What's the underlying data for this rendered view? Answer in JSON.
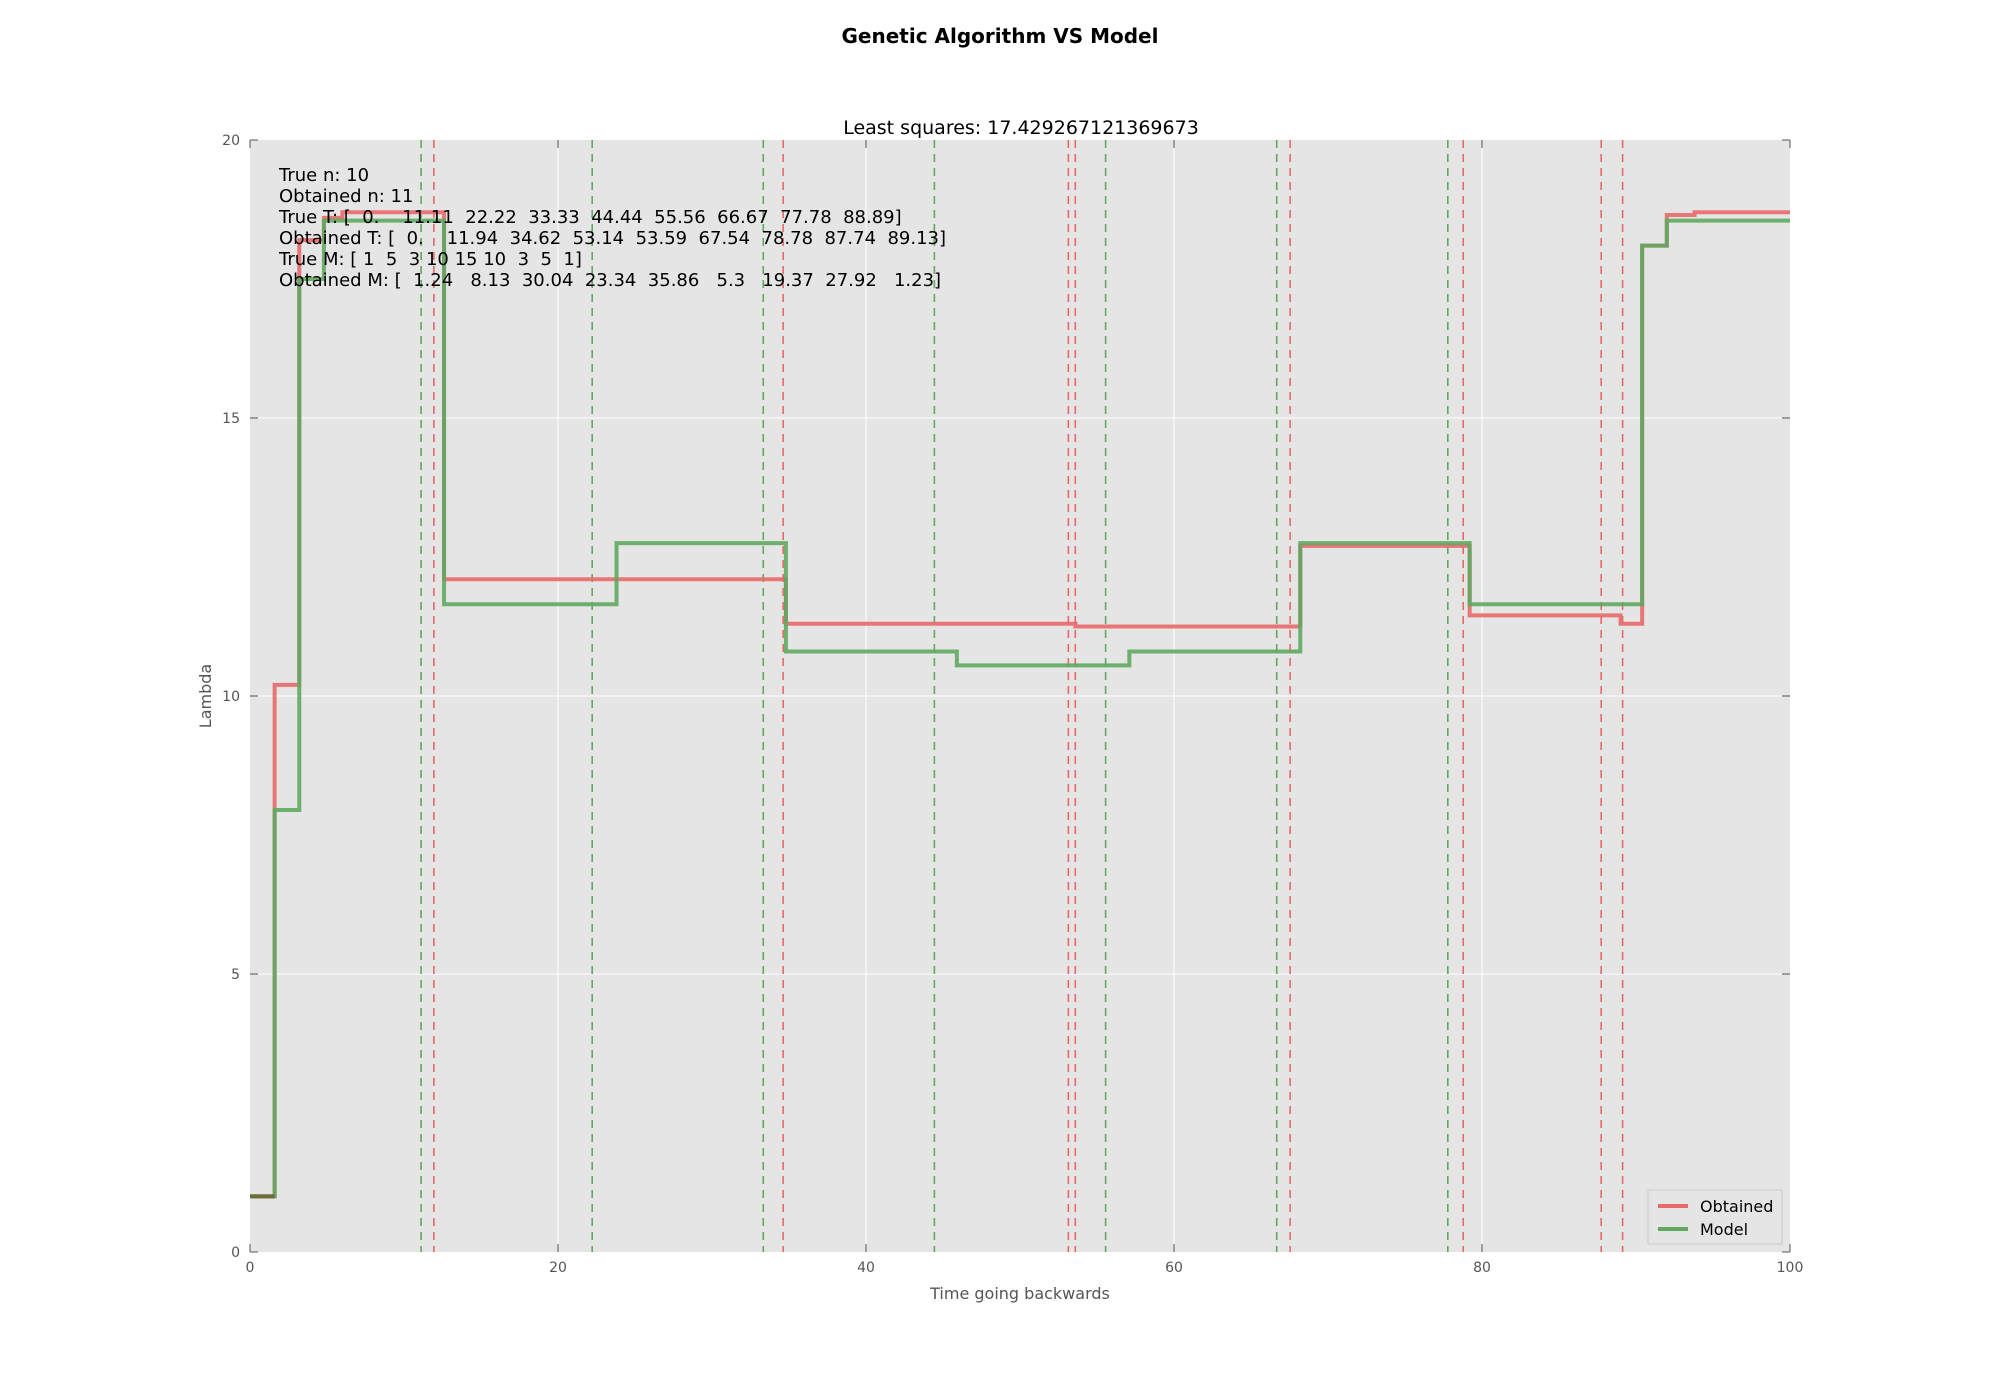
{
  "chart_data": {
    "type": "line",
    "suptitle": "Genetic Algorithm VS Model",
    "title": "Least squares: 17.429267121369673",
    "xlabel": "Time going backwards",
    "ylabel": "Lambda",
    "xlim": [
      0,
      100
    ],
    "ylim": [
      0,
      20
    ],
    "xticks": [
      0,
      20,
      40,
      60,
      80,
      100
    ],
    "yticks": [
      0,
      5,
      10,
      15,
      20
    ],
    "grid": true,
    "legend_position": "bottom-right",
    "annotations": [
      "True n: 10",
      "Obtained n: 11",
      "True T: [  0.    11.11  22.22  33.33  44.44  55.56  66.67  77.78  88.89]",
      "Obtained T: [  0.    11.94  34.62  53.14  53.59  67.54  78.78  87.74  89.13]",
      "True M: [ 1  5  3 10 15 10  3  5  1]",
      "Obtained M: [  1.24   8.13  30.04  23.34  35.86   5.3   19.37  27.92   1.23]"
    ],
    "series": [
      {
        "name": "Obtained",
        "color": "#e8696a",
        "style": "step-post",
        "x": [
          0,
          1.6,
          3.2,
          4.8,
          6.0,
          12.6,
          34.8,
          53.6,
          68.2,
          79.2,
          89.0,
          90.4,
          92.0,
          93.8,
          100
        ],
        "y": [
          1.0,
          10.2,
          18.2,
          18.6,
          18.7,
          12.1,
          11.3,
          11.25,
          12.7,
          11.45,
          11.3,
          18.1,
          18.65,
          18.7,
          18.7
        ]
      },
      {
        "name": "Model",
        "color": "#5fa85f",
        "style": "step-post",
        "x": [
          0,
          1.6,
          3.2,
          4.8,
          12.6,
          23.8,
          34.8,
          45.9,
          57.1,
          68.2,
          79.2,
          90.4,
          92.0,
          100
        ],
        "y": [
          1.0,
          7.95,
          17.5,
          18.55,
          11.65,
          12.75,
          10.8,
          10.55,
          10.8,
          12.75,
          11.65,
          18.1,
          18.55,
          18.55
        ]
      }
    ],
    "vlines": [
      {
        "x": 11.11,
        "series": "Model"
      },
      {
        "x": 22.22,
        "series": "Model"
      },
      {
        "x": 33.33,
        "series": "Model"
      },
      {
        "x": 44.44,
        "series": "Model"
      },
      {
        "x": 55.56,
        "series": "Model"
      },
      {
        "x": 66.67,
        "series": "Model"
      },
      {
        "x": 77.78,
        "series": "Model"
      },
      {
        "x": 11.94,
        "series": "Obtained"
      },
      {
        "x": 34.62,
        "series": "Obtained"
      },
      {
        "x": 53.14,
        "series": "Obtained"
      },
      {
        "x": 53.59,
        "series": "Obtained"
      },
      {
        "x": 67.54,
        "series": "Obtained"
      },
      {
        "x": 78.78,
        "series": "Obtained"
      },
      {
        "x": 87.74,
        "series": "Obtained"
      },
      {
        "x": 89.13,
        "series": "Obtained"
      }
    ],
    "colors": {
      "plot_background": "#e5e5e5",
      "grid": "#ffffff",
      "obtained": "#e8696a",
      "model": "#5fa85f",
      "overlap": "#6d6d3a"
    }
  }
}
